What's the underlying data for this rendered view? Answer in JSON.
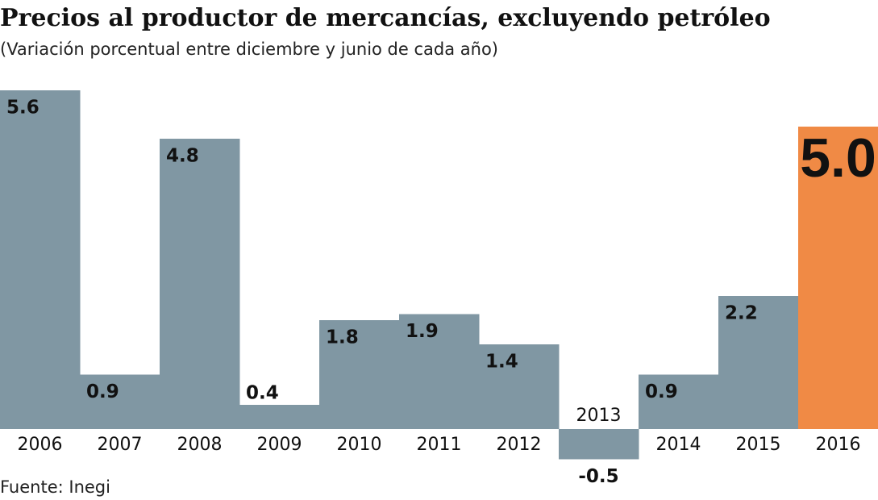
{
  "chart_data": {
    "type": "bar",
    "title": "Precios al productor de mercancías, excluyendo petróleo",
    "subtitle": "(Variación porcentual entre diciembre y junio de cada año)",
    "source": "Fuente: Inegi",
    "categories": [
      "2006",
      "2007",
      "2008",
      "2009",
      "2010",
      "2011",
      "2012",
      "2013",
      "2014",
      "2015",
      "2016"
    ],
    "values": [
      5.6,
      0.9,
      4.8,
      0.4,
      1.8,
      1.9,
      1.4,
      -0.5,
      0.9,
      2.2,
      5.0
    ],
    "value_labels": [
      "5.6",
      "0.9",
      "4.8",
      "0.4",
      "1.8",
      "1.9",
      "1.4",
      "-0.5",
      "0.9",
      "2.2",
      "5.0"
    ],
    "colors": [
      "#8097a3",
      "#8097a3",
      "#8097a3",
      "#8097a3",
      "#8097a3",
      "#8097a3",
      "#8097a3",
      "#8097a3",
      "#8097a3",
      "#8097a3",
      "#f08a45"
    ]
  }
}
